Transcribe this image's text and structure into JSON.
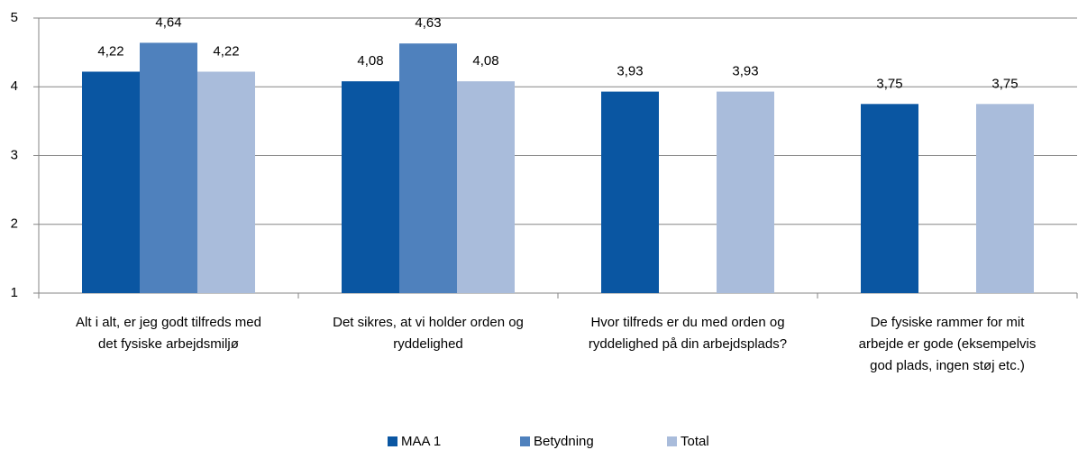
{
  "chart_data": {
    "type": "bar",
    "categories": [
      [
        "Alt i alt, er jeg godt tilfreds med",
        "det fysiske arbejdsmiljø"
      ],
      [
        "Det sikres, at vi holder orden og",
        "ryddelighed"
      ],
      [
        "Hvor tilfreds er du med orden og",
        "ryddelighed på din arbejdsplads?"
      ],
      [
        "De fysiske rammer for mit",
        "arbejde er gode (eksempelvis",
        "god plads, ingen støj etc.)"
      ]
    ],
    "series": [
      {
        "name": "MAA 1",
        "color": "#0a56a2",
        "values": [
          4.22,
          4.08,
          3.93,
          3.75
        ],
        "value_labels": [
          "4,22",
          "4,08",
          "3,93",
          "3,75"
        ]
      },
      {
        "name": "Betydning",
        "color": "#4f81bd",
        "values": [
          4.64,
          4.63,
          null,
          null
        ],
        "value_labels": [
          "4,64",
          "4,63",
          null,
          null
        ]
      },
      {
        "name": "Total",
        "color": "#a9bcdb",
        "values": [
          4.22,
          4.08,
          3.93,
          3.75
        ],
        "value_labels": [
          "4,22",
          "4,08",
          "3,93",
          "3,75"
        ]
      }
    ],
    "ylim": [
      1,
      5
    ],
    "yticks": [
      1,
      2,
      3,
      4,
      5
    ],
    "grid": true,
    "legend": "bottom"
  }
}
